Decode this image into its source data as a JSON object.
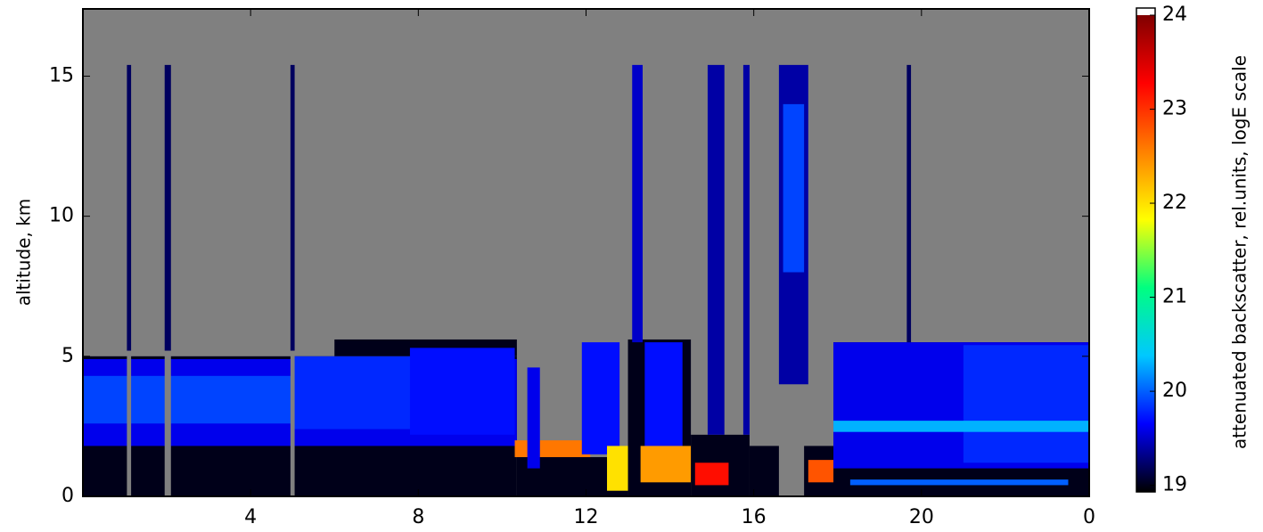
{
  "chart_data": {
    "type": "heatmap",
    "ylabel": "altitude, km",
    "colorbar_label": "attenuated backscatter, rel.units, logE scale",
    "xlim": [
      0,
      24
    ],
    "ylim": [
      0,
      17.4
    ],
    "xticks": [
      4,
      8,
      12,
      16,
      20,
      {
        "value": 24,
        "label": "0"
      }
    ],
    "yticks": [
      0,
      5,
      10,
      15
    ],
    "clim": [
      18.93,
      24
    ],
    "cticks": [
      19,
      20,
      21,
      22,
      23,
      24
    ],
    "colormap": [
      "#000000",
      "#0000ff",
      "#00c8ff",
      "#00ff80",
      "#ffff00",
      "#ff8000",
      "#ff0000",
      "#800000"
    ],
    "over_color": "#ffffff",
    "missing_color": "#808080",
    "cells": [
      {
        "x": [
          0,
          10.35
        ],
        "y": [
          0,
          5.0
        ],
        "value": 19
      },
      {
        "x": [
          6,
          10.35
        ],
        "y": [
          5.0,
          5.6
        ],
        "value": 19
      },
      {
        "x": [
          0,
          10.35
        ],
        "y": [
          1.8,
          4.9
        ],
        "value": 19.6
      },
      {
        "x": [
          0,
          6.5
        ],
        "y": [
          2.6,
          4.3
        ],
        "value": 19.9
      },
      {
        "x": [
          5,
          10.3
        ],
        "y": [
          2.4,
          5.0
        ],
        "value": 19.8
      },
      {
        "x": [
          7.8,
          10.3
        ],
        "y": [
          2.2,
          5.3
        ],
        "value": 19.7
      },
      {
        "x": [
          1.05,
          1.15
        ],
        "y": [
          0,
          5.2
        ],
        "value": null
      },
      {
        "x": [
          1.95,
          2.1
        ],
        "y": [
          0,
          5.2
        ],
        "value": null
      },
      {
        "x": [
          4.95,
          5.05
        ],
        "y": [
          0,
          5.2
        ],
        "value": null
      },
      {
        "x": [
          1.05,
          1.15
        ],
        "y": [
          5.2,
          15.4
        ],
        "value": 19.2
      },
      {
        "x": [
          1.95,
          2.1
        ],
        "y": [
          5.2,
          15.4
        ],
        "value": 19.2
      },
      {
        "x": [
          4.95,
          5.05
        ],
        "y": [
          5.2,
          15.4
        ],
        "value": 19.2
      },
      {
        "x": [
          10.35,
          13.0
        ],
        "y": [
          0,
          1.4
        ],
        "value": 19
      },
      {
        "x": [
          10.3,
          12.1
        ],
        "y": [
          1.4,
          2.0
        ],
        "value": 22.6
      },
      {
        "x": [
          10.6,
          10.9
        ],
        "y": [
          1.0,
          4.6
        ],
        "value": 19.6
      },
      {
        "x": [
          11.9,
          12.8
        ],
        "y": [
          1.5,
          5.5
        ],
        "value": 19.7
      },
      {
        "x": [
          12.5,
          13.1
        ],
        "y": [
          0.2,
          1.8
        ],
        "value": 22.0
      },
      {
        "x": [
          13.0,
          14.5
        ],
        "y": [
          0,
          5.6
        ],
        "value": 19
      },
      {
        "x": [
          13.4,
          14.3
        ],
        "y": [
          1.6,
          5.5
        ],
        "value": 19.7
      },
      {
        "x": [
          13.1,
          13.35
        ],
        "y": [
          5.5,
          15.4
        ],
        "value": 19.5
      },
      {
        "x": [
          13.3,
          14.6
        ],
        "y": [
          0.5,
          1.8
        ],
        "value": 22.4
      },
      {
        "x": [
          14.5,
          15.9
        ],
        "y": [
          0,
          2.2
        ],
        "value": 19
      },
      {
        "x": [
          14.6,
          15.4
        ],
        "y": [
          0.4,
          1.2
        ],
        "value": 23.2
      },
      {
        "x": [
          14.9,
          15.3
        ],
        "y": [
          2.2,
          15.4
        ],
        "value": 19.4
      },
      {
        "x": [
          15.75,
          15.9
        ],
        "y": [
          2.2,
          15.4
        ],
        "value": 19.4
      },
      {
        "x": [
          15.9,
          16.6
        ],
        "y": [
          0,
          1.8
        ],
        "value": 19
      },
      {
        "x": [
          16.6,
          17.3
        ],
        "y": [
          4.0,
          15.4
        ],
        "value": 19.4
      },
      {
        "x": [
          16.7,
          17.2
        ],
        "y": [
          8,
          14
        ],
        "value": 19.9
      },
      {
        "x": [
          17.2,
          18.0
        ],
        "y": [
          0,
          1.8
        ],
        "value": 19
      },
      {
        "x": [
          17.3,
          18.0
        ],
        "y": [
          0.5,
          1.3
        ],
        "value": 22.8
      },
      {
        "x": [
          17.9,
          24
        ],
        "y": [
          0,
          5.5
        ],
        "value": 19
      },
      {
        "x": [
          17.9,
          24
        ],
        "y": [
          1.0,
          5.5
        ],
        "value": 19.6
      },
      {
        "x": [
          21,
          24
        ],
        "y": [
          1.2,
          5.4
        ],
        "value": 19.8
      },
      {
        "x": [
          17.9,
          24
        ],
        "y": [
          2.3,
          2.7
        ],
        "value": 20.3
      },
      {
        "x": [
          19.65,
          19.75
        ],
        "y": [
          5.5,
          15.4
        ],
        "value": 19.2
      },
      {
        "x": [
          18.3,
          23.5
        ],
        "y": [
          0.4,
          0.6
        ],
        "value": 20.0
      }
    ]
  }
}
